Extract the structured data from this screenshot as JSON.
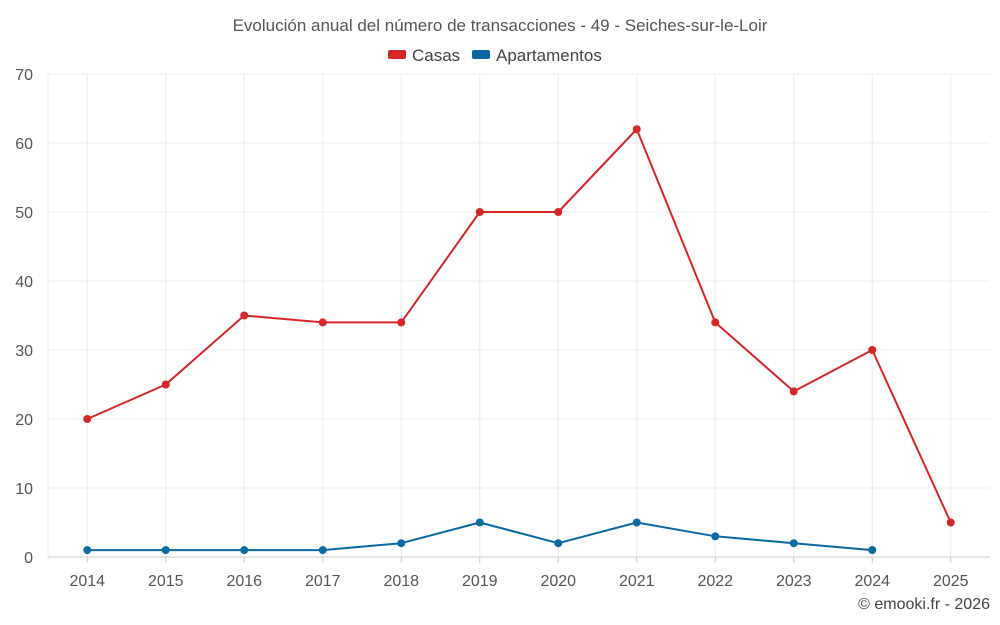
{
  "chart_data": {
    "type": "line",
    "title": "Evolución anual del número de transacciones - 49 - Seiches-sur-le-Loir",
    "categories": [
      "2014",
      "2015",
      "2016",
      "2017",
      "2018",
      "2019",
      "2020",
      "2021",
      "2022",
      "2023",
      "2024",
      "2025"
    ],
    "series": [
      {
        "name": "Casas",
        "color": "#d62728",
        "values": [
          20,
          25,
          35,
          34,
          34,
          50,
          50,
          62,
          34,
          24,
          30,
          5
        ]
      },
      {
        "name": "Apartamentos",
        "color": "#0a6aa1",
        "values": [
          1,
          1,
          1,
          1,
          2,
          5,
          2,
          5,
          3,
          2,
          1,
          null
        ]
      }
    ],
    "ylim": [
      0,
      70
    ],
    "yticks": [
      0,
      10,
      20,
      30,
      40,
      50,
      60,
      70
    ],
    "grid": true,
    "legend_position": "top-center",
    "credit": "© emooki.fr - 2026"
  }
}
